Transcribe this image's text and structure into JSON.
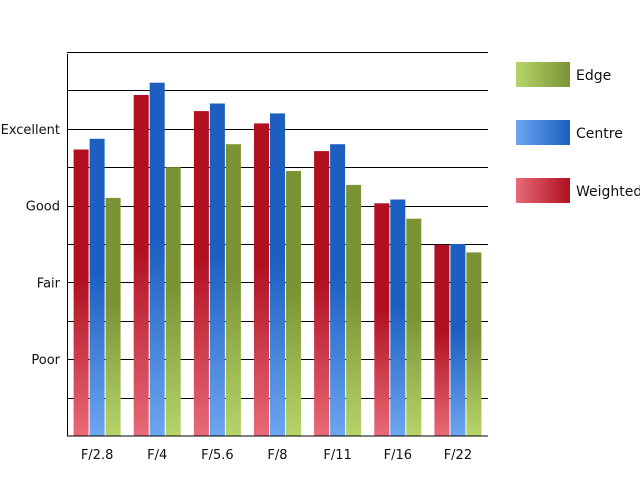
{
  "chart_data": {
    "type": "bar",
    "categories": [
      "F/2.8",
      "F/4",
      "F/5.6",
      "F/8",
      "F/11",
      "F/16",
      "F/22"
    ],
    "y_tick_labels": [
      {
        "label": "Poor",
        "value": 1
      },
      {
        "label": "Fair",
        "value": 2
      },
      {
        "label": "Good",
        "value": 3
      },
      {
        "label": "Excellent",
        "value": 4
      }
    ],
    "ylim": [
      0,
      5
    ],
    "grid_step": 0.5,
    "grid": true,
    "legend_position": "right",
    "series": [
      {
        "name": "Weighted",
        "key": "weighted",
        "values": [
          3.73,
          4.44,
          4.23,
          4.07,
          3.71,
          3.03,
          2.49
        ]
      },
      {
        "name": "Centre",
        "key": "centre",
        "values": [
          3.87,
          4.6,
          4.33,
          4.2,
          3.8,
          3.08,
          2.5
        ]
      },
      {
        "name": "Edge",
        "key": "edge",
        "values": [
          3.1,
          3.5,
          3.8,
          3.45,
          3.27,
          2.83,
          2.39
        ]
      }
    ],
    "legend_order": [
      "Edge",
      "Centre",
      "Weighted"
    ],
    "colors": {
      "weighted": {
        "dark": "#b01020",
        "light": "#e86a78"
      },
      "centre": {
        "dark": "#1c5fc0",
        "light": "#6da6f0"
      },
      "edge": {
        "dark": "#7a9435",
        "light": "#b6d46a"
      }
    }
  }
}
